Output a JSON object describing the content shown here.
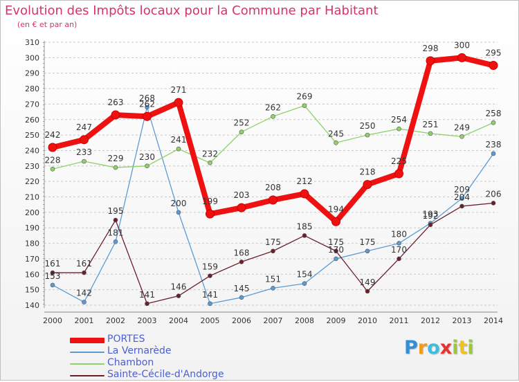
{
  "header": {
    "title": "Evolution des Impôts locaux pour la Commune par Habitant",
    "subtitle": "(en € et par an)"
  },
  "chart_data": {
    "type": "line",
    "title": "Evolution des Impôts locaux pour la Commune par Habitant",
    "subtitle": "(en € et par an)",
    "xlabel": "",
    "ylabel": "",
    "x": [
      "2000",
      "2001",
      "2002",
      "2003",
      "2004",
      "2005",
      "2006",
      "2007",
      "2008",
      "2009",
      "2010",
      "2011",
      "2012",
      "2013",
      "2014"
    ],
    "ylim": [
      140,
      310
    ],
    "yticks": [
      140,
      150,
      160,
      170,
      180,
      190,
      200,
      210,
      220,
      230,
      240,
      250,
      260,
      270,
      280,
      290,
      300,
      310
    ],
    "grid": "horizontal-dashed",
    "legend_position": "bottom-left",
    "series": [
      {
        "name": "PORTES",
        "color": "#ee1111",
        "width": 8,
        "values": [
          242,
          247,
          263,
          262,
          271,
          199,
          203,
          208,
          212,
          194,
          218,
          225,
          298,
          300,
          295
        ]
      },
      {
        "name": "La Vernarède",
        "color": "#5b9bd5",
        "width": 1.3,
        "values": [
          153,
          142,
          181,
          268,
          200,
          141,
          145,
          151,
          154,
          170,
          175,
          180,
          193,
          209,
          238
        ]
      },
      {
        "name": "Chambon",
        "color": "#8fd16a",
        "width": 1.3,
        "values": [
          228,
          233,
          229,
          230,
          241,
          232,
          252,
          262,
          269,
          245,
          250,
          254,
          251,
          249,
          258
        ]
      },
      {
        "name": "Sainte-Cécile-d'Andorge",
        "color": "#6b1f2a",
        "width": 1.3,
        "values": [
          161,
          161,
          195,
          141,
          146,
          159,
          168,
          175,
          185,
          175,
          149,
          170,
          192,
          204,
          206
        ]
      }
    ]
  },
  "legend": {
    "items": [
      {
        "label": "PORTES",
        "color": "#ee1111"
      },
      {
        "label": "La Vernarède",
        "color": "#5b9bd5"
      },
      {
        "label": "Chambon",
        "color": "#8fd16a"
      },
      {
        "label": "Sainte-Cécile-d'Andorge",
        "color": "#6b1f2a"
      }
    ]
  },
  "logo": {
    "text": "Proxiti",
    "letters": [
      {
        "ch": "P",
        "color": "#2f8fd8"
      },
      {
        "ch": "r",
        "color": "#f29a1d"
      },
      {
        "ch": "o",
        "color": "#3bbfe0"
      },
      {
        "ch": "x",
        "color": "#e8322d"
      },
      {
        "ch": "i",
        "color": "#9bc83c"
      },
      {
        "ch": "t",
        "color": "#f2c21a"
      },
      {
        "ch": "i",
        "color": "#9bc83c"
      }
    ]
  }
}
